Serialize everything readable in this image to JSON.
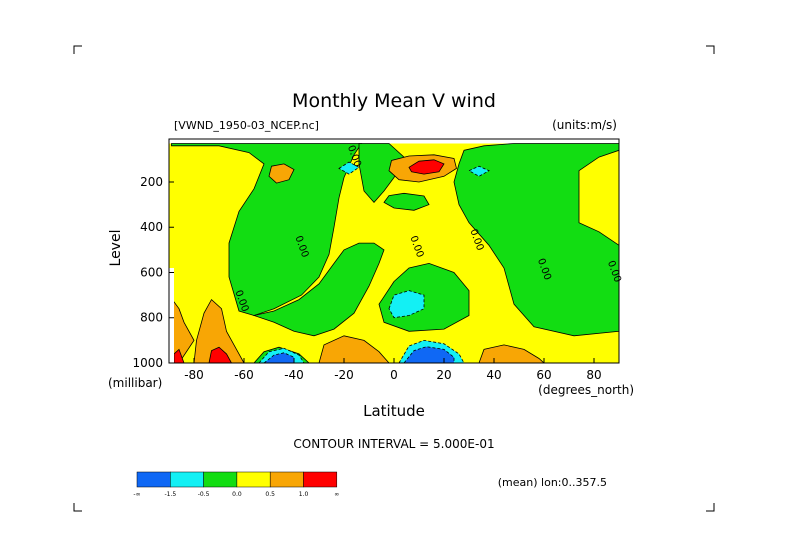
{
  "chart_data": {
    "type": "heatmap",
    "title": "Monthly Mean V wind",
    "dataset": "[VWND_1950-03_NCEP.nc]",
    "units": "(units:m/s)",
    "xlabel": "Latitude",
    "xunits": "(degrees_north)",
    "ylabel": "Level",
    "yunits": "(millibar)",
    "x_ticks": [
      -80,
      -60,
      -40,
      -20,
      0,
      20,
      40,
      60,
      80
    ],
    "y_ticks": [
      200,
      400,
      600,
      800,
      1000
    ],
    "xlim": [
      -90,
      90
    ],
    "ylim": [
      1000,
      10
    ],
    "contour_interval_text": "CONTOUR INTERVAL = 5.000E-01",
    "mean_text": "(mean) lon:0..357.5",
    "contour_labels": [
      {
        "lat": -17,
        "level": 90,
        "text": "0.00"
      },
      {
        "lat": -38,
        "level": 490,
        "text": "0.00"
      },
      {
        "lat": -62,
        "level": 730,
        "text": "0.00"
      },
      {
        "lat": 8,
        "level": 490,
        "text": "0.00"
      },
      {
        "lat": 32,
        "level": 460,
        "text": "0.00"
      },
      {
        "lat": 59,
        "level": 590,
        "text": "0.00"
      },
      {
        "lat": 87,
        "level": 600,
        "text": "0.00"
      }
    ],
    "colorbar": {
      "colors": [
        "#0f68f5",
        "#13f0f4",
        "#12dd12",
        "#ffff00",
        "#f8a605",
        "#ff0000"
      ],
      "labels": [
        "-∞",
        "-1.5",
        "-0.5",
        "0.0",
        "0.5",
        "1.0",
        "∞"
      ]
    },
    "regions": [
      {
        "level": "yellow",
        "points": [
          [
            -90,
            30
          ],
          [
            90,
            30
          ],
          [
            90,
            1000
          ],
          [
            -90,
            1000
          ]
        ]
      },
      {
        "level": "green",
        "points": [
          [
            -89,
            30
          ],
          [
            -13,
            30
          ],
          [
            -16,
            80
          ],
          [
            -20,
            180
          ],
          [
            -22,
            270
          ],
          [
            -24,
            400
          ],
          [
            -26,
            520
          ],
          [
            -30,
            620
          ],
          [
            -37,
            700
          ],
          [
            -48,
            760
          ],
          [
            -56,
            790
          ],
          [
            -62,
            770
          ],
          [
            -66,
            620
          ],
          [
            -66,
            470
          ],
          [
            -62,
            330
          ],
          [
            -56,
            230
          ],
          [
            -52,
            120
          ],
          [
            -58,
            70
          ],
          [
            -70,
            40
          ],
          [
            -89,
            40
          ]
        ]
      },
      {
        "level": "green",
        "points": [
          [
            -56,
            790
          ],
          [
            -48,
            820
          ],
          [
            -40,
            860
          ],
          [
            -32,
            880
          ],
          [
            -24,
            850
          ],
          [
            -16,
            780
          ],
          [
            -10,
            660
          ],
          [
            -6,
            560
          ],
          [
            -4,
            500
          ],
          [
            -8,
            470
          ],
          [
            -14,
            470
          ],
          [
            -20,
            500
          ],
          [
            -24,
            560
          ],
          [
            -30,
            650
          ],
          [
            -38,
            720
          ],
          [
            -48,
            770
          ]
        ]
      },
      {
        "level": "green",
        "points": [
          [
            -14,
            30
          ],
          [
            -2,
            30
          ],
          [
            4,
            90
          ],
          [
            0,
            180
          ],
          [
            -4,
            240
          ],
          [
            -8,
            290
          ],
          [
            -12,
            240
          ],
          [
            -14,
            120
          ]
        ]
      },
      {
        "level": "green",
        "points": [
          [
            28,
            60
          ],
          [
            36,
            40
          ],
          [
            48,
            30
          ],
          [
            90,
            30
          ],
          [
            90,
            60
          ],
          [
            82,
            90
          ],
          [
            74,
            150
          ],
          [
            74,
            380
          ],
          [
            82,
            420
          ],
          [
            90,
            480
          ],
          [
            90,
            860
          ],
          [
            72,
            880
          ],
          [
            56,
            840
          ],
          [
            48,
            740
          ],
          [
            44,
            580
          ],
          [
            38,
            480
          ],
          [
            30,
            380
          ],
          [
            26,
            300
          ],
          [
            24,
            200
          ],
          [
            26,
            120
          ]
        ]
      },
      {
        "level": "green",
        "points": [
          [
            0,
            640
          ],
          [
            6,
            580
          ],
          [
            14,
            560
          ],
          [
            24,
            600
          ],
          [
            30,
            680
          ],
          [
            30,
            790
          ],
          [
            20,
            850
          ],
          [
            6,
            860
          ],
          [
            -4,
            820
          ],
          [
            -6,
            740
          ]
        ]
      },
      {
        "level": "green",
        "points": [
          [
            -2,
            260
          ],
          [
            4,
            250
          ],
          [
            12,
            262
          ],
          [
            14,
            300
          ],
          [
            8,
            325
          ],
          [
            0,
            315
          ],
          [
            -4,
            290
          ]
        ]
      },
      {
        "level": "green",
        "points": [
          [
            4,
            1000
          ],
          [
            10,
            950
          ],
          [
            14,
            930
          ],
          [
            22,
            960
          ],
          [
            26,
            1000
          ]
        ]
      },
      {
        "level": "green",
        "points": [
          [
            -56,
            1000
          ],
          [
            -52,
            950
          ],
          [
            -46,
            930
          ],
          [
            -38,
            960
          ],
          [
            -34,
            1000
          ]
        ]
      },
      {
        "level": "cyan",
        "points": [
          [
            -22,
            140
          ],
          [
            -18,
            112
          ],
          [
            -14,
            135
          ],
          [
            -18,
            165
          ]
        ]
      },
      {
        "level": "cyan",
        "points": [
          [
            30,
            150
          ],
          [
            34,
            130
          ],
          [
            38,
            150
          ],
          [
            34,
            175
          ]
        ]
      },
      {
        "level": "cyan",
        "points": [
          [
            -2,
            760
          ],
          [
            0,
            700
          ],
          [
            6,
            680
          ],
          [
            12,
            700
          ],
          [
            12,
            760
          ],
          [
            6,
            790
          ],
          [
            0,
            800
          ]
        ]
      },
      {
        "level": "cyan",
        "points": [
          [
            -54,
            1000
          ],
          [
            -50,
            950
          ],
          [
            -44,
            935
          ],
          [
            -38,
            965
          ],
          [
            -36,
            1000
          ]
        ]
      },
      {
        "level": "cyan",
        "points": [
          [
            2,
            1000
          ],
          [
            6,
            925
          ],
          [
            12,
            900
          ],
          [
            20,
            915
          ],
          [
            26,
            960
          ],
          [
            28,
            1000
          ]
        ]
      },
      {
        "level": "blue",
        "points": [
          [
            -52,
            1000
          ],
          [
            -48,
            965
          ],
          [
            -44,
            955
          ],
          [
            -40,
            975
          ],
          [
            -40,
            1000
          ]
        ]
      },
      {
        "level": "blue",
        "points": [
          [
            4,
            1000
          ],
          [
            8,
            945
          ],
          [
            13,
            928
          ],
          [
            20,
            940
          ],
          [
            24,
            975
          ],
          [
            24,
            1000
          ]
        ]
      },
      {
        "level": "orange",
        "points": [
          [
            -49,
            130
          ],
          [
            -44,
            120
          ],
          [
            -40,
            145
          ],
          [
            -42,
            190
          ],
          [
            -47,
            205
          ],
          [
            -50,
            175
          ]
        ]
      },
      {
        "level": "orange",
        "points": [
          [
            -2,
            150
          ],
          [
            -1,
            105
          ],
          [
            6,
            85
          ],
          [
            16,
            80
          ],
          [
            24,
            96
          ],
          [
            25,
            140
          ],
          [
            20,
            175
          ],
          [
            10,
            200
          ],
          [
            2,
            190
          ]
        ]
      },
      {
        "level": "red",
        "points": [
          [
            6,
            135
          ],
          [
            10,
            108
          ],
          [
            16,
            102
          ],
          [
            20,
            120
          ],
          [
            18,
            155
          ],
          [
            12,
            165
          ],
          [
            7,
            155
          ]
        ]
      },
      {
        "level": "orange",
        "points": [
          [
            -90,
            700
          ],
          [
            -86,
            760
          ],
          [
            -84,
            820
          ],
          [
            -80,
            900
          ],
          [
            -86,
            1000
          ],
          [
            -90,
            1000
          ]
        ]
      },
      {
        "level": "orange",
        "points": [
          [
            -80,
            1000
          ],
          [
            -79,
            900
          ],
          [
            -76,
            780
          ],
          [
            -73,
            720
          ],
          [
            -69,
            760
          ],
          [
            -67,
            860
          ],
          [
            -63,
            940
          ],
          [
            -60,
            1000
          ]
        ]
      },
      {
        "level": "red",
        "points": [
          [
            -74,
            1000
          ],
          [
            -73,
            945
          ],
          [
            -70,
            930
          ],
          [
            -67,
            960
          ],
          [
            -65,
            1000
          ]
        ]
      },
      {
        "level": "red",
        "points": [
          [
            -88,
            960
          ],
          [
            -86,
            940
          ],
          [
            -84,
            1000
          ],
          [
            -88,
            1000
          ]
        ]
      },
      {
        "level": "orange",
        "points": [
          [
            -30,
            1000
          ],
          [
            -28,
            920
          ],
          [
            -20,
            880
          ],
          [
            -12,
            900
          ],
          [
            -6,
            950
          ],
          [
            -2,
            1000
          ]
        ]
      },
      {
        "level": "orange",
        "points": [
          [
            34,
            1000
          ],
          [
            36,
            940
          ],
          [
            44,
            920
          ],
          [
            52,
            940
          ],
          [
            58,
            980
          ],
          [
            60,
            1000
          ]
        ]
      }
    ],
    "blank": {
      "points": [
        [
          -90,
          580
        ],
        [
          -88,
          580
        ],
        [
          -88,
          1000
        ],
        [
          -90,
          1000
        ]
      ]
    }
  }
}
